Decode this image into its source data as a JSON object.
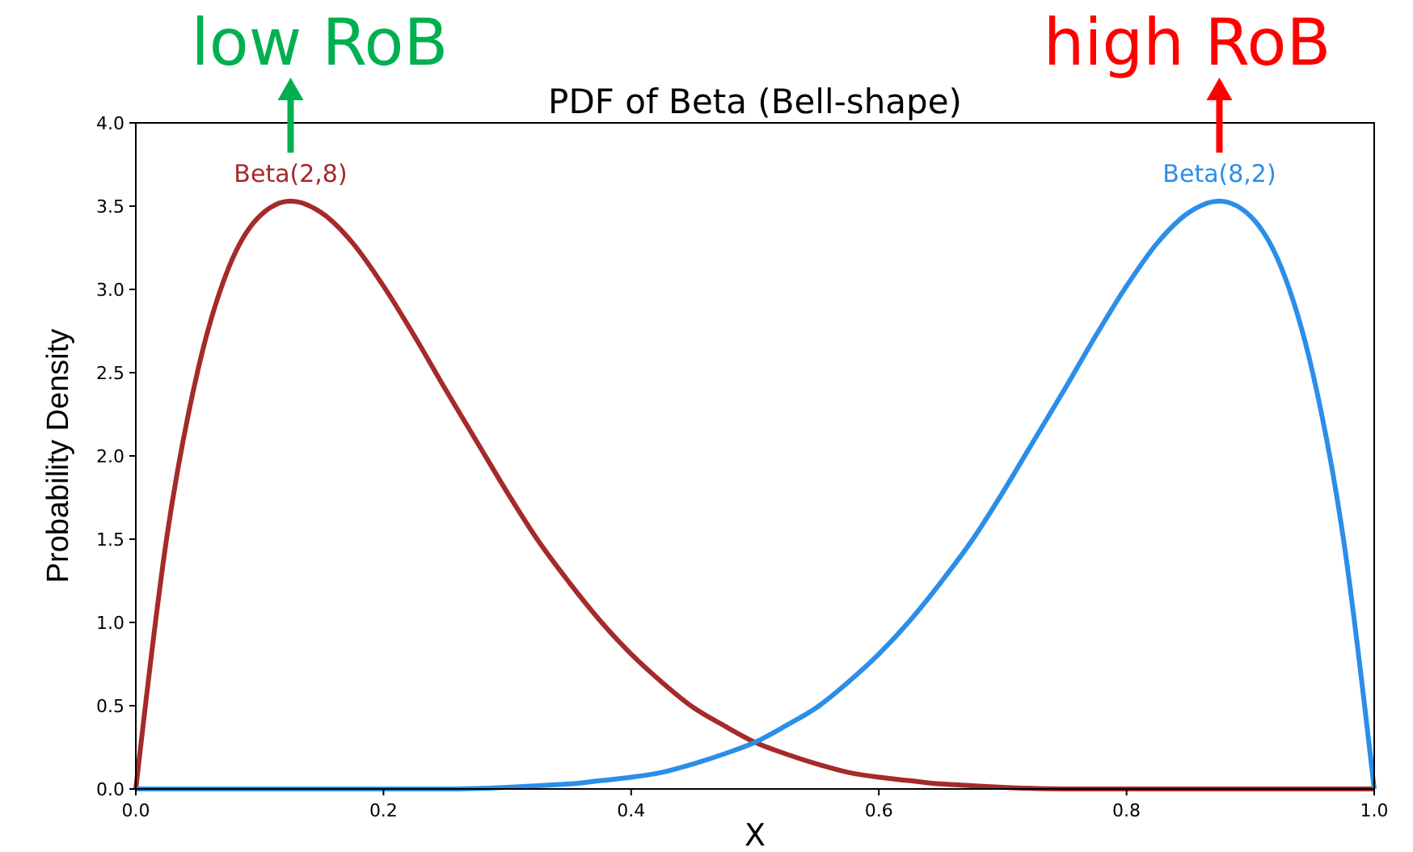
{
  "chart_data": {
    "type": "line",
    "title": "PDF of Beta (Bell-shape)",
    "xlabel": "X",
    "ylabel": "Probability Density",
    "xlim": [
      0,
      1
    ],
    "ylim": [
      0,
      4
    ],
    "xticks": [
      {
        "value": 0,
        "label": "0.0"
      },
      0.2,
      0.4,
      0.6,
      0.8,
      {
        "value": 1,
        "label": "1.0"
      }
    ],
    "yticks": [
      {
        "value": 0,
        "label": "0.0"
      },
      0.5,
      {
        "value": 1,
        "label": "1.0"
      },
      1.5,
      {
        "value": 2,
        "label": "2.0"
      },
      2.5,
      {
        "value": 3,
        "label": "3.0"
      },
      3.5,
      {
        "value": 4,
        "label": "4.0"
      }
    ],
    "grid": false,
    "marker": "none",
    "line_style": "solid",
    "series": [
      {
        "name": "Beta(2,8)",
        "color": "#a52a2a",
        "x": [
          0,
          0.025,
          0.05,
          0.075,
          0.1,
          0.125,
          0.15,
          0.175,
          0.2,
          0.225,
          0.25,
          0.275,
          0.3,
          0.325,
          0.35,
          0.375,
          0.4,
          0.425,
          0.45,
          0.475,
          0.5,
          0.525,
          0.55,
          0.575,
          0.6,
          0.625,
          0.65,
          0.675,
          0.7,
          0.75,
          0.8,
          0.9,
          1
        ],
        "values": [
          0,
          1.51,
          2.51,
          3.13,
          3.44,
          3.53,
          3.46,
          3.28,
          3.02,
          2.72,
          2.4,
          2.09,
          1.78,
          1.49,
          1.24,
          1.01,
          0.81,
          0.64,
          0.49,
          0.38,
          0.28,
          0.21,
          0.15,
          0.1,
          0.07,
          0.05,
          0.03,
          0.02,
          0.01,
          0,
          0,
          0,
          0
        ]
      },
      {
        "name": "Beta(8,2)",
        "color": "#2b8ee8",
        "x": [
          1,
          0.975,
          0.95,
          0.925,
          0.9,
          0.875,
          0.85,
          0.825,
          0.8,
          0.775,
          0.75,
          0.725,
          0.7,
          0.675,
          0.65,
          0.625,
          0.6,
          0.575,
          0.55,
          0.525,
          0.5,
          0.475,
          0.45,
          0.425,
          0.4,
          0.375,
          0.35,
          0.325,
          0.3,
          0.25,
          0.2,
          0.1,
          0
        ],
        "values": [
          0,
          1.51,
          2.51,
          3.13,
          3.44,
          3.53,
          3.46,
          3.28,
          3.02,
          2.72,
          2.4,
          2.09,
          1.78,
          1.49,
          1.24,
          1.01,
          0.81,
          0.64,
          0.49,
          0.38,
          0.28,
          0.21,
          0.15,
          0.1,
          0.07,
          0.05,
          0.03,
          0.02,
          0.01,
          0,
          0,
          0,
          0
        ]
      }
    ],
    "annotations": [
      {
        "text": "low RoB",
        "x": 0.125,
        "y": 3.53
      },
      {
        "text": "high RoB",
        "x": 0.875,
        "y": 3.53
      }
    ]
  }
}
